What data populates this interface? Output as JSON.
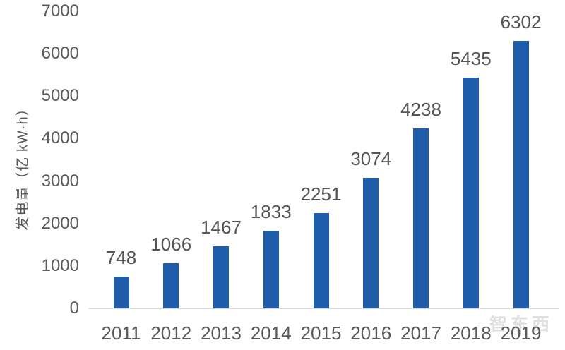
{
  "chart_data": {
    "type": "bar",
    "categories": [
      "2011",
      "2012",
      "2013",
      "2014",
      "2015",
      "2016",
      "2017",
      "2018",
      "2019"
    ],
    "values": [
      748,
      1066,
      1467,
      1833,
      2251,
      3074,
      4238,
      5435,
      6302
    ],
    "title": "",
    "xlabel": "",
    "ylabel": "发电量（亿 kW·h）",
    "ylim": [
      0,
      7000
    ],
    "yticks": [
      0,
      1000,
      2000,
      3000,
      4000,
      5000,
      6000,
      7000
    ],
    "grid": false,
    "legend": false,
    "bar_color": "#1f5ca9",
    "tick_label_color": "#595959",
    "value_label_color": "#555555",
    "axis_line_color": "#dadada"
  },
  "watermark": {
    "text": "智东西"
  }
}
